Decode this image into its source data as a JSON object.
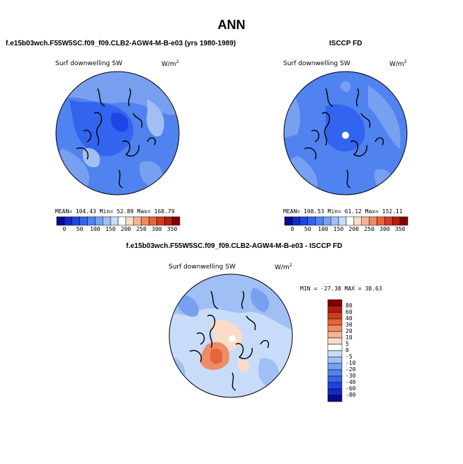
{
  "title": "ANN",
  "panels": [
    {
      "heading": "f.e15b03wch.F55W5SC.f09_f09.CLB2-AGW4-M-B-e03 (yrs 1980-1989)",
      "variable": "Surf downwelling SW",
      "units": "W/m",
      "units_exp": "2",
      "stats": {
        "mean_label": "MEAN=",
        "mean": "104.43",
        "min_label": "Min=",
        "min": "52.89",
        "max_label": "Max=",
        "max": "168.79"
      }
    },
    {
      "heading": "ISCCP FD",
      "variable": "Surf downwelling SW",
      "units": "W/m",
      "units_exp": "2",
      "stats": {
        "mean_label": "MEAN=",
        "mean": "108.53",
        "min_label": "Min=",
        "min": "61.12",
        "max_label": "Max=",
        "max": "152.11"
      }
    },
    {
      "heading": "f.e15b03wch.F55W5SC.f09_f09.CLB2-AGW4-M-B-e03 - ISCCP FD",
      "variable": "Surf downwelling SW",
      "units": "W/m",
      "units_exp": "2",
      "stats": {
        "min_label": "MIN =",
        "min": "-27.38",
        "max_label": "MAX =",
        "max": "38.63"
      }
    }
  ],
  "colorbar_abs": {
    "labels": [
      "0",
      "50",
      "100",
      "150",
      "200",
      "250",
      "300",
      "350"
    ],
    "colors": [
      "#0a0a8c",
      "#1428c8",
      "#1e46e6",
      "#3264f0",
      "#5082f0",
      "#78a0f0",
      "#a0c0f5",
      "#c8dcfa",
      "#ffffff",
      "#fadcc8",
      "#f5b496",
      "#f08c64",
      "#e6643c",
      "#d23c1e",
      "#b41e0a",
      "#820000"
    ]
  },
  "colorbar_diff": {
    "labels": [
      "80",
      "60",
      "40",
      "30",
      "20",
      "10",
      "5",
      "0",
      "-5",
      "-10",
      "-20",
      "-30",
      "-40",
      "-60",
      "-80"
    ],
    "colors": [
      "#820000",
      "#b41e0a",
      "#d23c1e",
      "#e6643c",
      "#f08c64",
      "#f5b496",
      "#fadcc8",
      "#ffffff",
      "#c8dcfa",
      "#a0c0f5",
      "#78a0f0",
      "#5082f0",
      "#3264f0",
      "#1e46e6",
      "#1428c8",
      "#0a0a8c"
    ]
  }
}
